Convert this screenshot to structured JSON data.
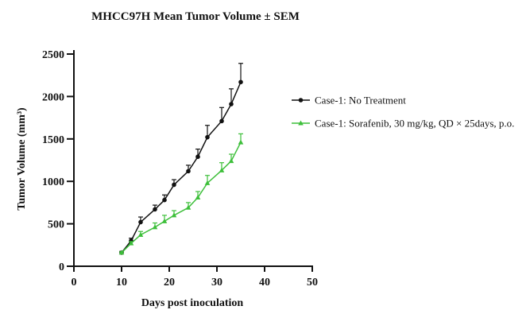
{
  "chart_data": {
    "type": "line",
    "title": "MHCC97H Mean Tumor Volume ± SEM",
    "xlabel": "Days post inoculation",
    "ylabel": "Tumor Volume (mm³)",
    "xlim": [
      0,
      50
    ],
    "ylim": [
      0,
      2500
    ],
    "xticks": [
      0,
      10,
      20,
      30,
      40,
      50
    ],
    "yticks": [
      0,
      500,
      1000,
      1500,
      2000,
      2500
    ],
    "grid": false,
    "legend_position": "right",
    "series": [
      {
        "name": "Case-1: No Treatment",
        "color": "#111111",
        "marker": "circle",
        "x": [
          10,
          12,
          14,
          17,
          19,
          21,
          24,
          26,
          28,
          31,
          33,
          35
        ],
        "y": [
          160,
          300,
          520,
          670,
          780,
          960,
          1120,
          1290,
          1520,
          1710,
          1910,
          2170
        ],
        "sem": [
          15,
          30,
          60,
          50,
          60,
          60,
          70,
          90,
          140,
          160,
          180,
          220
        ]
      },
      {
        "name": "Case-1: Sorafenib, 30 mg/kg, QD × 25days, p.o.",
        "color": "#3dbf3a",
        "marker": "triangle",
        "x": [
          10,
          12,
          14,
          17,
          19,
          21,
          24,
          26,
          28,
          31,
          33,
          35
        ],
        "y": [
          160,
          270,
          370,
          460,
          530,
          600,
          690,
          810,
          980,
          1130,
          1240,
          1460
        ],
        "sem": [
          10,
          20,
          40,
          50,
          70,
          55,
          60,
          70,
          90,
          90,
          80,
          100
        ]
      }
    ]
  }
}
